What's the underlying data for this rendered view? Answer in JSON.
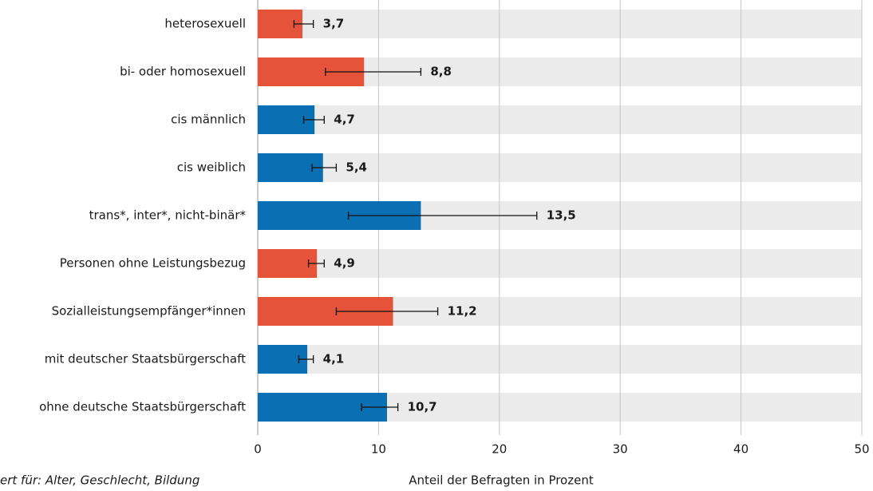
{
  "chart_data": {
    "type": "bar",
    "orientation": "horizontal",
    "categories": [
      "heterosexuell",
      "bi- oder homosexuell",
      "cis männlich",
      "cis weiblich",
      "trans*, inter*, nicht-binär*",
      "Personen ohne Leistungsbezug",
      "Sozialleistungsempfänger*innen",
      "mit deutscher Staatsbürgerschaft",
      "ohne deutsche Staatsbürgerschaft"
    ],
    "values": [
      3.7,
      8.8,
      4.7,
      5.4,
      13.5,
      4.9,
      11.2,
      4.1,
      10.7
    ],
    "value_labels": [
      "3,7",
      "8,8",
      "4,7",
      "5,4",
      "13,5",
      "4,9",
      "11,2",
      "4,1",
      "10,7"
    ],
    "ci": [
      [
        3.0,
        4.6
      ],
      [
        5.6,
        13.5
      ],
      [
        3.8,
        5.5
      ],
      [
        4.5,
        6.5
      ],
      [
        7.5,
        23.1
      ],
      [
        4.2,
        5.5
      ],
      [
        6.5,
        14.9
      ],
      [
        3.4,
        4.6
      ],
      [
        8.6,
        11.6
      ]
    ],
    "colors": [
      "#e5533a",
      "#e5533a",
      "#0a6fb3",
      "#0a6fb3",
      "#0a6fb3",
      "#e5533a",
      "#e5533a",
      "#0a6fb3",
      "#0a6fb3"
    ],
    "xlim": [
      0,
      50
    ],
    "xticks": [
      0,
      10,
      20,
      30,
      40,
      50
    ],
    "grid": true,
    "xlabel": "Anteil der Befragten in Prozent",
    "note": "ert für: Alter, Geschlecht, Bildung"
  }
}
